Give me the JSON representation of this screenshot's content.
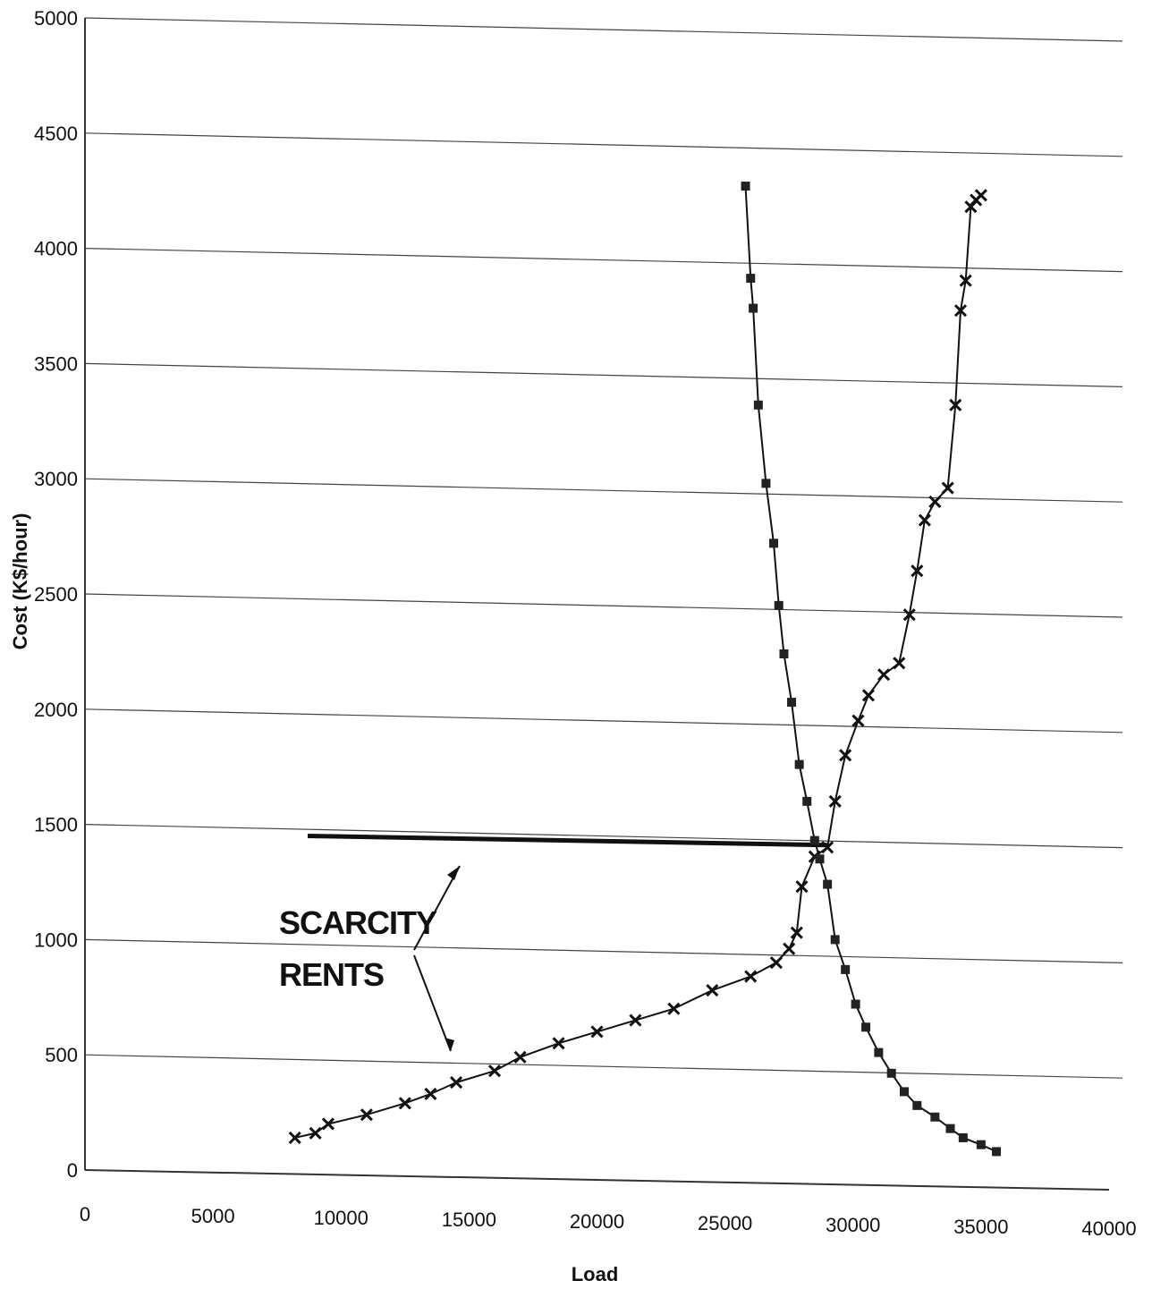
{
  "chart_data": {
    "type": "line",
    "xlabel": "Load",
    "ylabel": "Cost (K$/hour)",
    "xlim": [
      0,
      40000
    ],
    "ylim": [
      0,
      5000
    ],
    "x_ticks": [
      "0",
      "5000",
      "10000",
      "15000",
      "20000",
      "25000",
      "30000",
      "35000",
      "40000"
    ],
    "y_ticks": [
      "0",
      "500",
      "1000",
      "1500",
      "2000",
      "2500",
      "3000",
      "3500",
      "4000",
      "4500",
      "5000"
    ],
    "grid": "horizontal",
    "annotation": {
      "lines": [
        "SCARCITY",
        "RENTS"
      ]
    },
    "scarcity_line": {
      "x": [
        8700,
        29000
      ],
      "y": [
        1450,
        1410
      ]
    },
    "series": [
      {
        "marker": "x",
        "x": [
          8200,
          9000,
          9500,
          11000,
          12500,
          13500,
          14500,
          16000,
          17000,
          18500,
          20000,
          21500,
          23000,
          24500,
          26000,
          27000,
          27500,
          27800,
          28000,
          28500,
          29000,
          29300,
          29700,
          30200,
          30600,
          31200,
          31800,
          32200,
          32500,
          32800,
          33200,
          33700,
          34000,
          34200,
          34400,
          34600,
          34800,
          35000
        ],
        "y": [
          140,
          160,
          200,
          240,
          290,
          330,
          380,
          430,
          490,
          550,
          600,
          650,
          700,
          780,
          840,
          900,
          960,
          1030,
          1230,
          1360,
          1400,
          1600,
          1800,
          1950,
          2060,
          2150,
          2200,
          2410,
          2600,
          2820,
          2900,
          2960,
          3320,
          3730,
          3860,
          4180,
          4210,
          4230
        ]
      },
      {
        "marker": "square",
        "x": [
          25800,
          26000,
          26100,
          26300,
          26600,
          26900,
          27100,
          27300,
          27600,
          27900,
          28200,
          28500,
          28700,
          29000,
          29300,
          29700,
          30100,
          30500,
          31000,
          31500,
          32000,
          32500,
          33200,
          33800,
          34300,
          35000,
          35600
        ],
        "y": [
          4270,
          3870,
          3740,
          3320,
          2980,
          2720,
          2450,
          2240,
          2030,
          1760,
          1600,
          1430,
          1350,
          1240,
          1000,
          870,
          720,
          620,
          510,
          420,
          340,
          280,
          230,
          180,
          140,
          110,
          80
        ]
      }
    ]
  }
}
